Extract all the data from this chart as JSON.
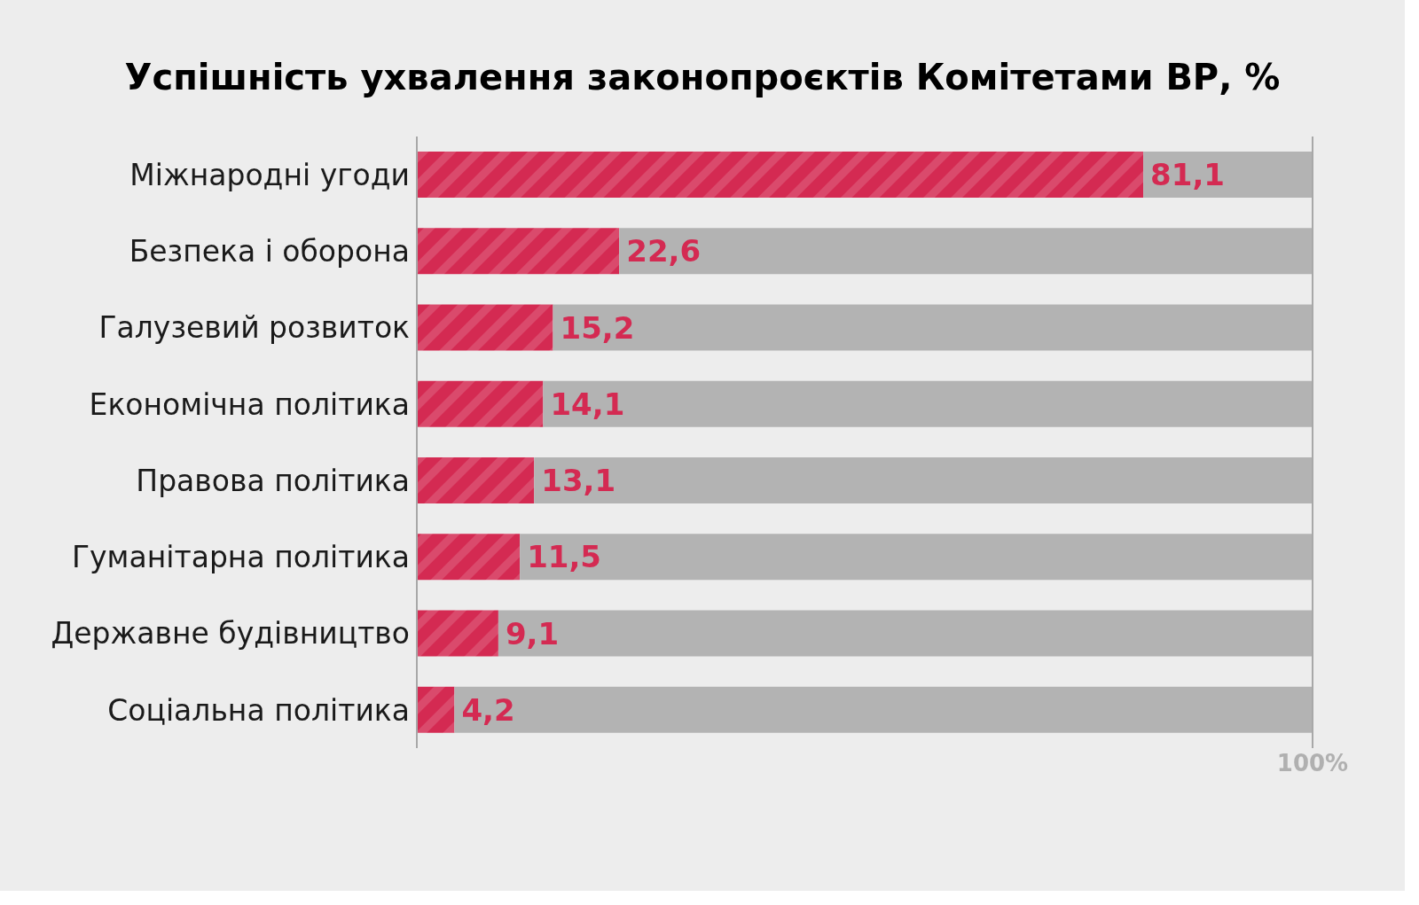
{
  "chart_data": {
    "type": "bar",
    "orientation": "horizontal",
    "stacked": true,
    "title": "Успішність ухвалення законопроєктів Комітетами ВР, %",
    "categories": [
      "Міжнародні угоди",
      "Безпека і оборона",
      "Галузевий розвиток",
      "Економічна політика",
      "Правова політика",
      "Гуманітарна політика",
      "Державне будівництво",
      "Соціальна політика"
    ],
    "series": [
      {
        "color": "#d42a52",
        "values": [
          81.1,
          22.6,
          15.2,
          14.1,
          13.1,
          11.5,
          9.1,
          4.2
        ],
        "value_labels": [
          "81,1",
          "22,6",
          "15,2",
          "14,1",
          "13,1",
          "11,5",
          "9,1",
          "4,2"
        ]
      },
      {
        "color": "#b3b3b3",
        "values": [
          18.9,
          77.4,
          84.8,
          85.9,
          86.9,
          88.5,
          90.9,
          95.8
        ]
      }
    ],
    "xlim": [
      0,
      100
    ],
    "xticks": [
      {
        "value": 100,
        "label": "100%"
      }
    ],
    "ref_lines": [
      {
        "axis": "x",
        "value": 100
      }
    ],
    "legend": false
  }
}
